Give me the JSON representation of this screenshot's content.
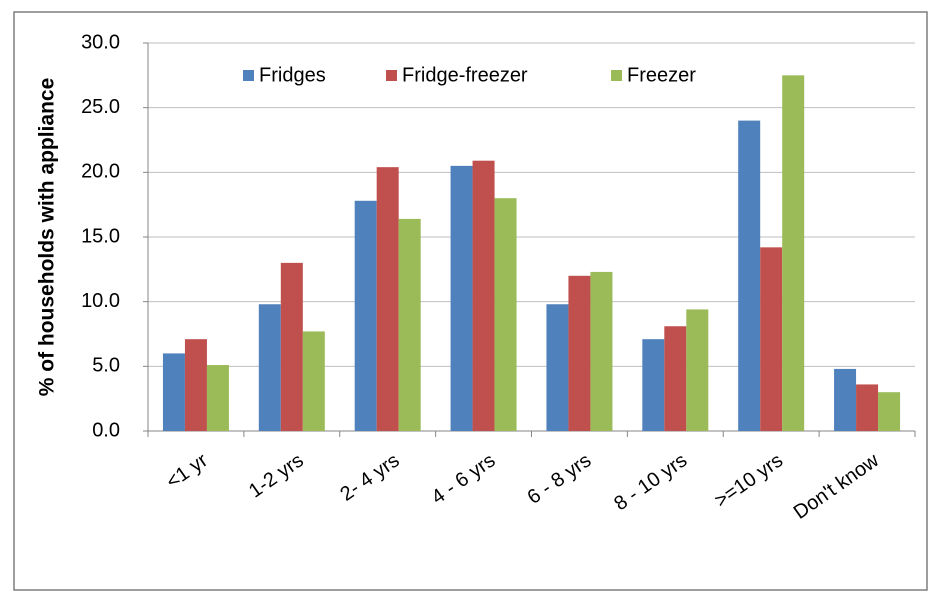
{
  "chart_data": {
    "type": "bar",
    "y_label": "% of households with appliance",
    "categories": [
      "<1 yr",
      "1-2 yrs",
      "2- 4 yrs",
      "4 - 6 yrs",
      "6 - 8 yrs",
      "8 - 10 yrs",
      ">=10 yrs",
      "Don't know"
    ],
    "series": [
      {
        "name": "Fridges",
        "color": "#4f81bd",
        "values": [
          6.0,
          9.8,
          17.8,
          20.5,
          9.8,
          7.1,
          24.0,
          4.8
        ]
      },
      {
        "name": "Fridge-freezer",
        "color": "#c0504d",
        "values": [
          7.1,
          13.0,
          20.4,
          20.9,
          12.0,
          8.1,
          14.2,
          3.6
        ]
      },
      {
        "name": "Freezer",
        "color": "#9bbb59",
        "values": [
          5.1,
          7.7,
          16.4,
          18.0,
          12.3,
          9.4,
          27.5,
          3.0
        ]
      }
    ],
    "ylim": [
      0,
      30
    ],
    "yticks": [
      {
        "value": 0,
        "label": "0.0"
      },
      {
        "value": 5,
        "label": "5.0"
      },
      {
        "value": 10,
        "label": "10.0"
      },
      {
        "value": 15,
        "label": "15.0"
      },
      {
        "value": 20,
        "label": "20.0"
      },
      {
        "value": 25,
        "label": "25.0"
      },
      {
        "value": 30,
        "label": "30.0"
      }
    ],
    "grid": true,
    "legend": "top"
  }
}
